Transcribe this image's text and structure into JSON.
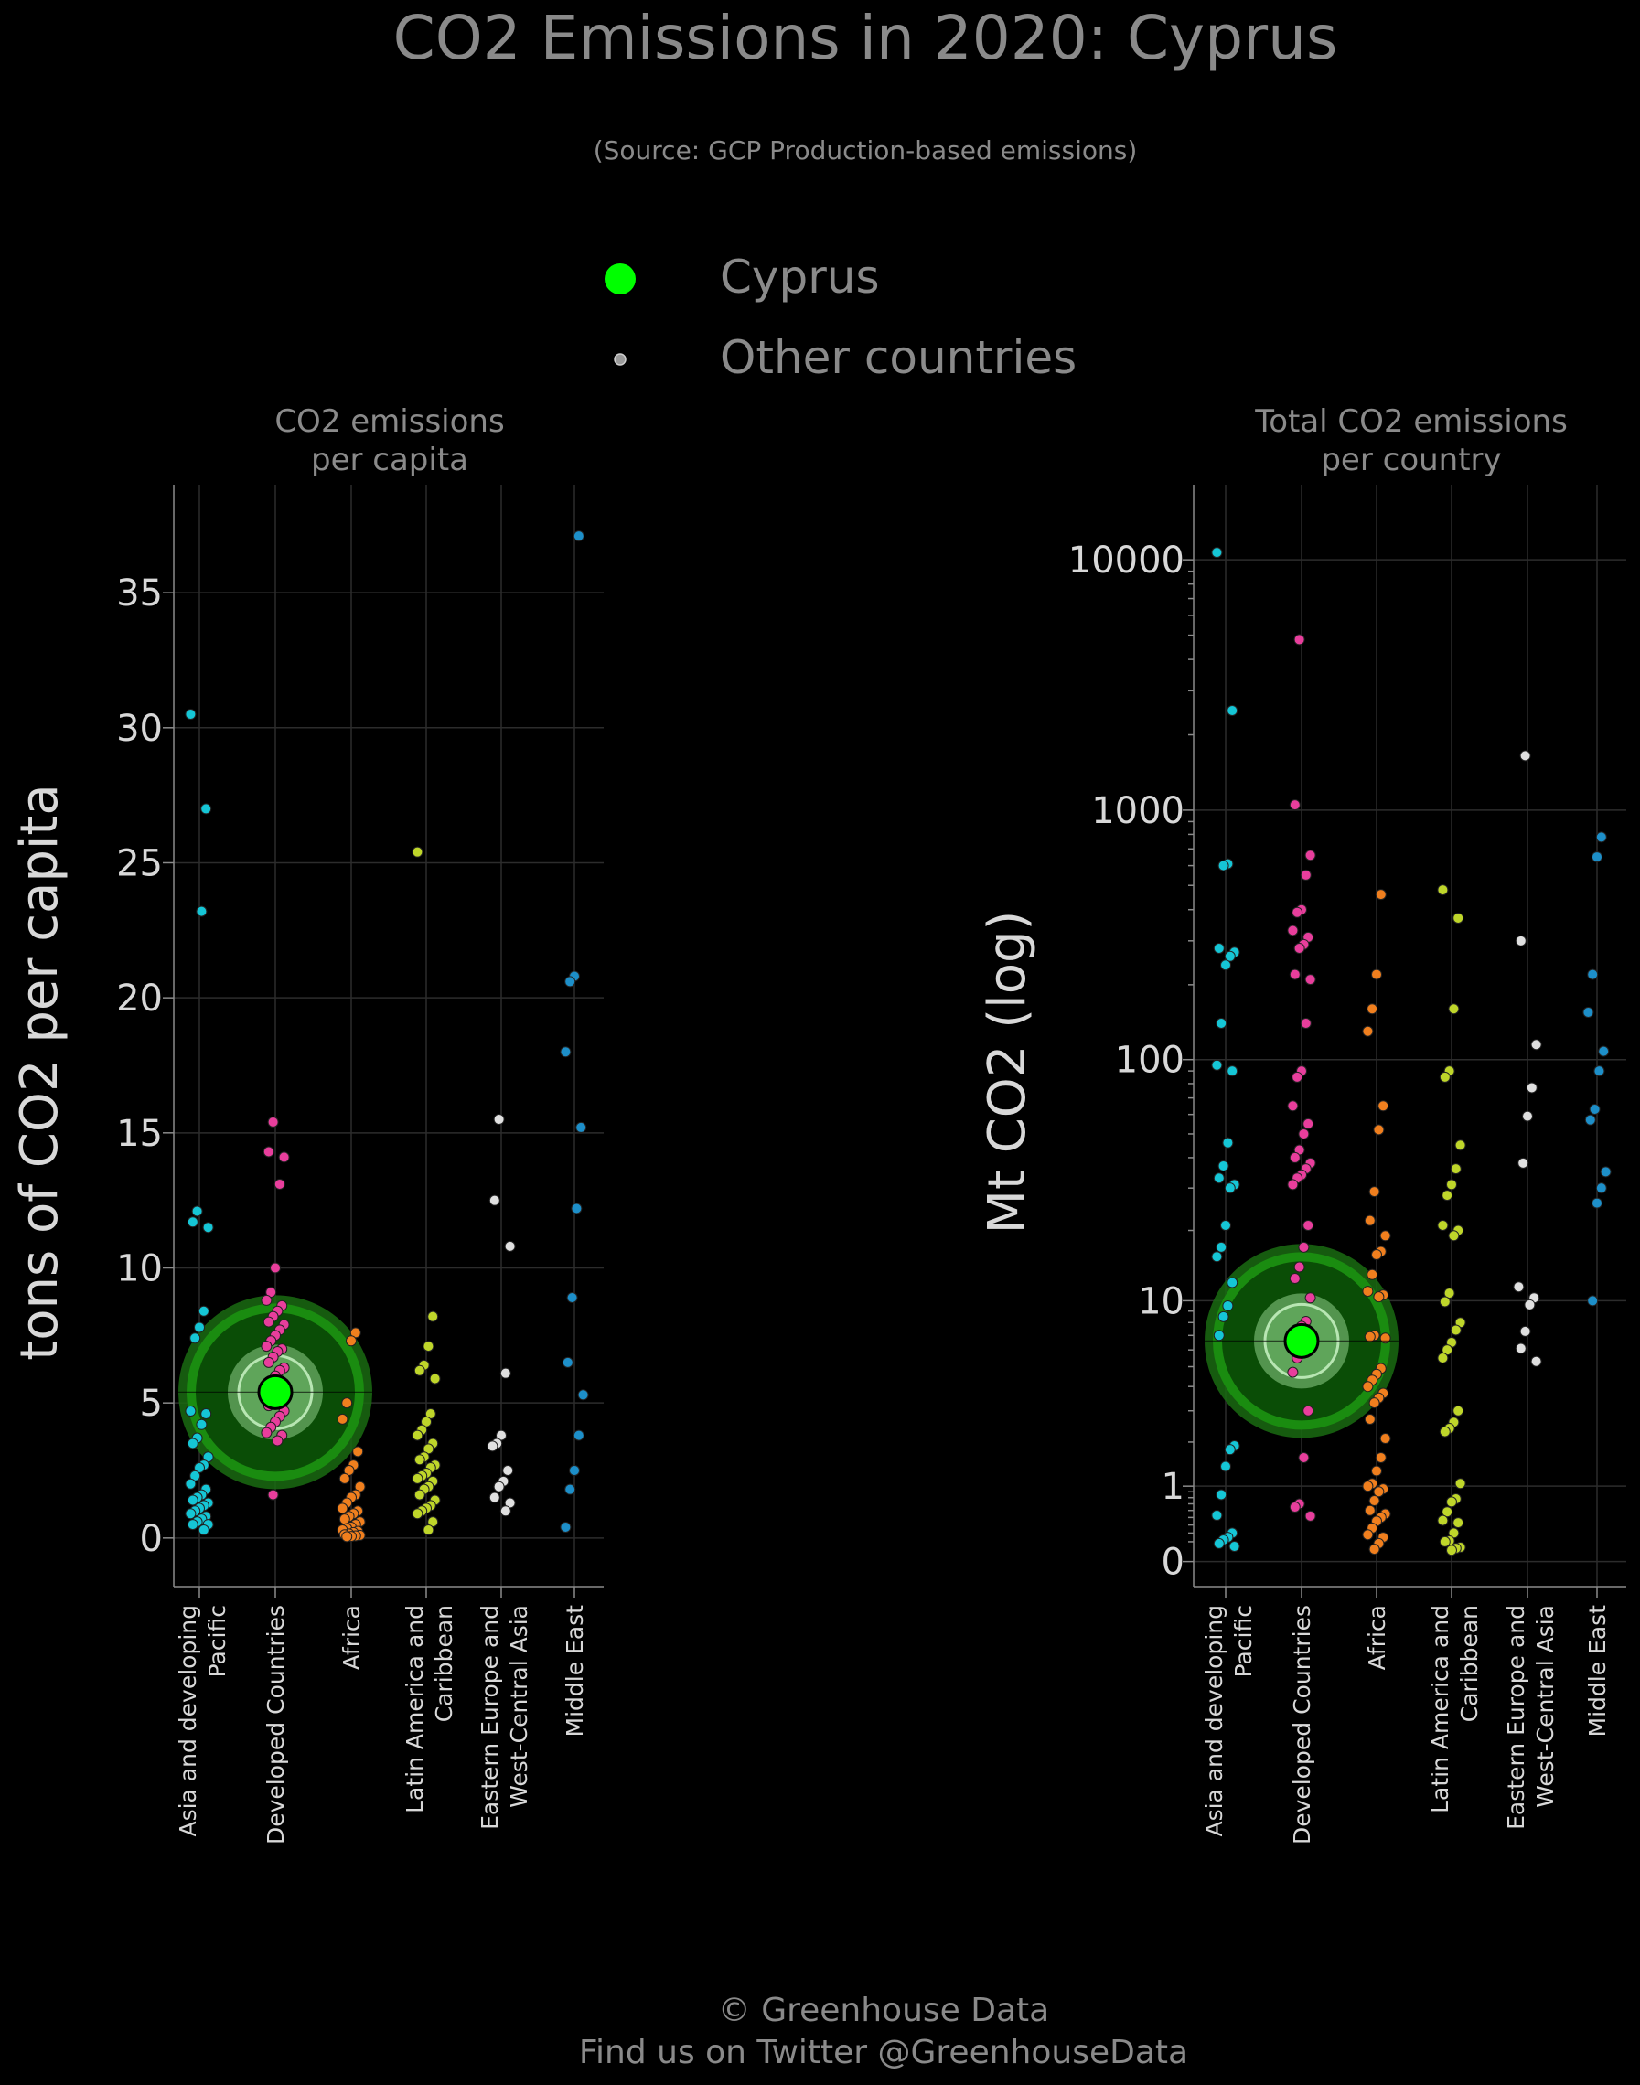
{
  "title": "CO2 Emissions in 2020: Cyprus",
  "subtitle": "(Source: GCP Production-based emissions)",
  "legend": {
    "highlight_label": "Cyprus",
    "other_label": "Other countries"
  },
  "footer": {
    "line1": "© Greenhouse Data",
    "line2": "Find us on Twitter @GreenhouseData"
  },
  "colors": {
    "highlight": "#00ff00",
    "Asia and developing Pacific": "#15c6d6",
    "Developed Countries": "#e83e9c",
    "Africa": "#f07f1e",
    "Latin America and Caribbean": "#bfd62a",
    "Eastern Europe and West-Central Asia": "#e0e0e0",
    "Middle East": "#1d8fc9"
  },
  "chart_data": [
    {
      "type": "scatter",
      "title": "CO2 emissions\nper capita",
      "ylabel": "tons of CO2 per capita",
      "ylim": [
        -1.8,
        39
      ],
      "yscale": "linear",
      "yticks": [
        "0",
        "5",
        "10",
        "15",
        "20",
        "25",
        "30",
        "35"
      ],
      "categories": [
        "Asia and developing\nPacific",
        "Developed Countries",
        "Africa",
        "Latin America and\nCaribbean",
        "Eastern Europe and\nWest-Central Asia",
        "Middle East"
      ],
      "highlight": {
        "name": "Cyprus",
        "category": 1,
        "value": 5.4
      },
      "series": [
        {
          "name": "Asia and developing Pacific",
          "values": [
            30.5,
            27,
            23.2,
            12.1,
            11.7,
            11.5,
            8.4,
            7.8,
            7.4,
            4.7,
            4.6,
            4.2,
            3.7,
            3.5,
            3.0,
            2.7,
            2.6,
            2.3,
            2.0,
            1.8,
            1.6,
            1.5,
            1.4,
            1.3,
            1.2,
            1.1,
            1.0,
            0.9,
            0.8,
            0.7,
            0.6,
            0.5,
            0.5,
            0.3
          ]
        },
        {
          "name": "Developed Countries",
          "values": [
            15.4,
            14.3,
            14.1,
            13.1,
            10.0,
            9.1,
            8.8,
            8.6,
            8.4,
            8.2,
            8.0,
            7.9,
            7.7,
            7.5,
            7.3,
            7.1,
            7.0,
            6.9,
            6.7,
            6.5,
            6.3,
            6.2,
            6.0,
            5.8,
            5.6,
            5.4,
            5.3,
            5.1,
            4.9,
            4.7,
            4.5,
            4.3,
            4.1,
            3.9,
            3.8,
            3.6,
            1.6
          ]
        },
        {
          "name": "Africa",
          "values": [
            7.6,
            7.3,
            5.0,
            4.4,
            3.2,
            2.7,
            2.5,
            2.2,
            1.9,
            1.6,
            1.5,
            1.3,
            1.1,
            1.0,
            0.9,
            0.8,
            0.7,
            0.6,
            0.5,
            0.4,
            0.35,
            0.3,
            0.25,
            0.2,
            0.15,
            0.12,
            0.1,
            0.08,
            0.06,
            0.05
          ]
        },
        {
          "name": "Latin America and Caribbean",
          "values": [
            25.4,
            8.2,
            7.1,
            6.4,
            6.2,
            5.9,
            4.6,
            4.3,
            4.0,
            3.8,
            3.5,
            3.3,
            3.0,
            2.9,
            2.7,
            2.6,
            2.4,
            2.3,
            2.2,
            2.1,
            1.9,
            1.8,
            1.6,
            1.4,
            1.2,
            1.1,
            1.0,
            0.9,
            0.6,
            0.3
          ]
        },
        {
          "name": "Eastern Europe and West-Central Asia",
          "values": [
            15.5,
            12.5,
            10.8,
            6.1,
            3.8,
            3.5,
            3.4,
            2.5,
            2.1,
            1.9,
            1.5,
            1.3,
            1.0
          ]
        },
        {
          "name": "Middle East",
          "values": [
            37.1,
            20.8,
            20.6,
            18.0,
            15.2,
            12.2,
            8.9,
            6.5,
            5.3,
            3.8,
            2.5,
            1.8,
            0.4
          ]
        }
      ]
    },
    {
      "type": "scatter",
      "title": "Total CO2 emissions\nper country",
      "ylabel": "Mt CO2 (log)",
      "yscale": "log",
      "ylim": [
        -0.1,
        4.3
      ],
      "yticks": [
        "0",
        "1",
        "10",
        "100",
        "1000",
        "10000"
      ],
      "categories": [
        "Asia and developing\nPacific",
        "Developed Countries",
        "Africa",
        "Latin America and\nCaribbean",
        "Eastern Europe and\nWest-Central Asia",
        "Middle East"
      ],
      "highlight": {
        "name": "Cyprus",
        "category": 1,
        "value": 6.6
      },
      "series": [
        {
          "name": "Asia and developing Pacific",
          "values": [
            10700,
            2500,
            610,
            600,
            280,
            270,
            260,
            240,
            140,
            95,
            90,
            46,
            37,
            33,
            31,
            30,
            21,
            17,
            15.5,
            12,
            9.5,
            8.5,
            7.0,
            1.9,
            1.8,
            1.4,
            0.85,
            0.53,
            0.3,
            0.25,
            0.22,
            0.18,
            0.15
          ]
        },
        {
          "name": "Developed Countries",
          "values": [
            4800,
            1050,
            660,
            550,
            400,
            390,
            330,
            310,
            290,
            280,
            220,
            210,
            140,
            90,
            85,
            65,
            55,
            50,
            43,
            40,
            38,
            36,
            34,
            33,
            31,
            21,
            17,
            14,
            12.5,
            10.3,
            8.1,
            7.7,
            5.5,
            4.7,
            3.0,
            1.6,
            0.7,
            0.65,
            0.52
          ]
        },
        {
          "name": "Africa",
          "values": [
            460,
            220,
            160,
            130,
            65,
            52,
            29,
            22,
            19,
            16.3,
            15.8,
            13,
            11,
            10.6,
            10.4,
            7.0,
            6.9,
            6.8,
            4.9,
            4.6,
            4.3,
            4.0,
            3.7,
            3.5,
            3.3,
            2.7,
            2.1,
            1.6,
            1.3,
            1.05,
            1.0,
            0.95,
            0.9,
            0.75,
            0.6,
            0.55,
            0.5,
            0.45,
            0.36,
            0.28,
            0.25,
            0.18,
            0.12
          ]
        },
        {
          "name": "Latin America and Caribbean",
          "values": [
            480,
            370,
            160,
            90,
            85,
            45,
            36,
            31,
            28,
            21,
            20,
            19,
            10.8,
            9.9,
            8.0,
            7.4,
            6.5,
            6.0,
            5.5,
            3.0,
            2.6,
            2.4,
            2.3,
            1.05,
            0.78,
            0.73,
            0.58,
            0.46,
            0.43,
            0.3,
            0.21,
            0.2,
            0.14,
            0.13,
            0.11
          ]
        },
        {
          "name": "Eastern Europe and West-Central Asia",
          "values": [
            1650,
            300,
            115,
            77,
            59,
            38,
            11.5,
            10.3,
            9.6,
            7.3,
            6.1,
            5.3
          ]
        },
        {
          "name": "Middle East",
          "values": [
            780,
            650,
            220,
            155,
            108,
            90,
            63,
            57,
            35,
            30,
            26,
            10
          ]
        }
      ]
    }
  ]
}
